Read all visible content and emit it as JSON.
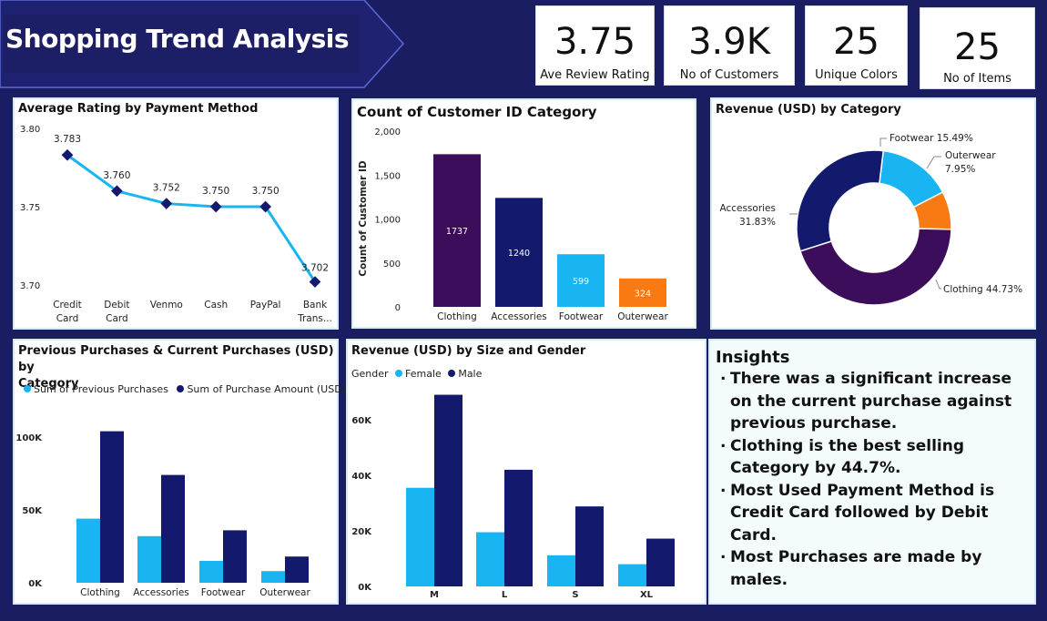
{
  "header": {
    "title": "Shopping Trend Analysis"
  },
  "kpis": [
    {
      "value": "3.75",
      "label": "Ave Review Rating"
    },
    {
      "value": "3.9K",
      "label": "No of Customers"
    },
    {
      "value": "25",
      "label": "Unique Colors"
    },
    {
      "value": "25",
      "label": "No of Items"
    }
  ],
  "colors": {
    "background": "#1b1d63",
    "banner": "#1f2270",
    "dark_purple": "#3b0d5a",
    "navy": "#131a6e",
    "light_blue": "#19b4f2",
    "orange": "#f97a12"
  },
  "insights": {
    "title": "Insights",
    "items": [
      "There was a significant increase on the current purchase against previous purchase.",
      "Clothing is the best selling Category by 44.7%.",
      "Most Used Payment Method is Credit Card followed by Debit Card.",
      "Most Purchases are made by males."
    ]
  },
  "chart_data": [
    {
      "type": "line",
      "title": "Average Rating by Payment Method",
      "categories": [
        [
          "Credit",
          "Card"
        ],
        [
          "Debit",
          "Card"
        ],
        [
          "Venmo"
        ],
        [
          "Cash"
        ],
        [
          "PayPal"
        ],
        [
          "Bank",
          "Trans..."
        ]
      ],
      "values": [
        3.783,
        3.76,
        3.752,
        3.75,
        3.75,
        3.702
      ],
      "data_labels": [
        "3.783",
        "3.760",
        "3.752",
        "3.750",
        "3.750",
        "3.702"
      ],
      "ylim": [
        3.7,
        3.8
      ],
      "yticks": [
        "3.80",
        "3.75",
        "3.70"
      ],
      "grid": false
    },
    {
      "type": "bar",
      "title": "Count of Customer ID Category",
      "ylabel": "Count of Customer ID",
      "categories": [
        "Clothing",
        "Accessories",
        "Footwear",
        "Outerwear"
      ],
      "values": [
        1737,
        1240,
        599,
        324
      ],
      "data_labels": [
        "1737",
        "1240",
        "599",
        "324"
      ],
      "bar_colors": [
        "#3b0d5a",
        "#131a6e",
        "#19b4f2",
        "#f97a12"
      ],
      "ylim": [
        0,
        2000
      ],
      "yticks": [
        "2,000",
        "1,500",
        "1,000",
        "500",
        "0"
      ],
      "grid": false
    },
    {
      "type": "pie",
      "title": "Revenue (USD) by Category",
      "donut": true,
      "slices": [
        {
          "label": "Clothing",
          "value": 44.73,
          "text": "Clothing 44.73%",
          "color": "#3b0d5a"
        },
        {
          "label": "Accessories",
          "value": 31.83,
          "text": [
            "Accessories",
            "31.83%"
          ],
          "color": "#131a6e"
        },
        {
          "label": "Footwear",
          "value": 15.49,
          "text": "Footwear 15.49%",
          "color": "#19b4f2"
        },
        {
          "label": "Outerwear",
          "value": 7.95,
          "text": [
            "Outerwear",
            "7.95%"
          ],
          "color": "#f97a12"
        }
      ]
    },
    {
      "type": "bar",
      "title": [
        "Previous Purchases & Current Purchases (USD) by",
        "Category"
      ],
      "categories": [
        "Clothing",
        "Accessories",
        "Footwear",
        "Outerwear"
      ],
      "series": [
        {
          "name": "Sum of Previous Purchases",
          "values": [
            44000,
            32000,
            15000,
            8000
          ],
          "color": "#19b4f2"
        },
        {
          "name": "Sum of Purchase Amount (USD)",
          "values": [
            104000,
            74000,
            36000,
            18000
          ],
          "color": "#131a6e"
        }
      ],
      "ylim": [
        0,
        120000
      ],
      "yticks": [
        {
          "v": 100000,
          "t": "100K"
        },
        {
          "v": 50000,
          "t": "50K"
        },
        {
          "v": 0,
          "t": "0K"
        }
      ],
      "legend": "top-left",
      "grid": false
    },
    {
      "type": "bar",
      "title": "Revenue (USD) by Size and Gender",
      "legend_title": "Gender",
      "categories": [
        "M",
        "L",
        "S",
        "XL"
      ],
      "series": [
        {
          "name": "Female",
          "values": [
            35500,
            19500,
            11200,
            8000
          ],
          "color": "#19b4f2"
        },
        {
          "name": "Male",
          "values": [
            69000,
            42000,
            28800,
            17200
          ],
          "color": "#131a6e"
        }
      ],
      "ylim": [
        0,
        70000
      ],
      "yticks": [
        {
          "v": 60000,
          "t": "60K"
        },
        {
          "v": 40000,
          "t": "40K"
        },
        {
          "v": 20000,
          "t": "20K"
        },
        {
          "v": 0,
          "t": "0K"
        }
      ],
      "legend": "top-left",
      "grid": false
    }
  ]
}
